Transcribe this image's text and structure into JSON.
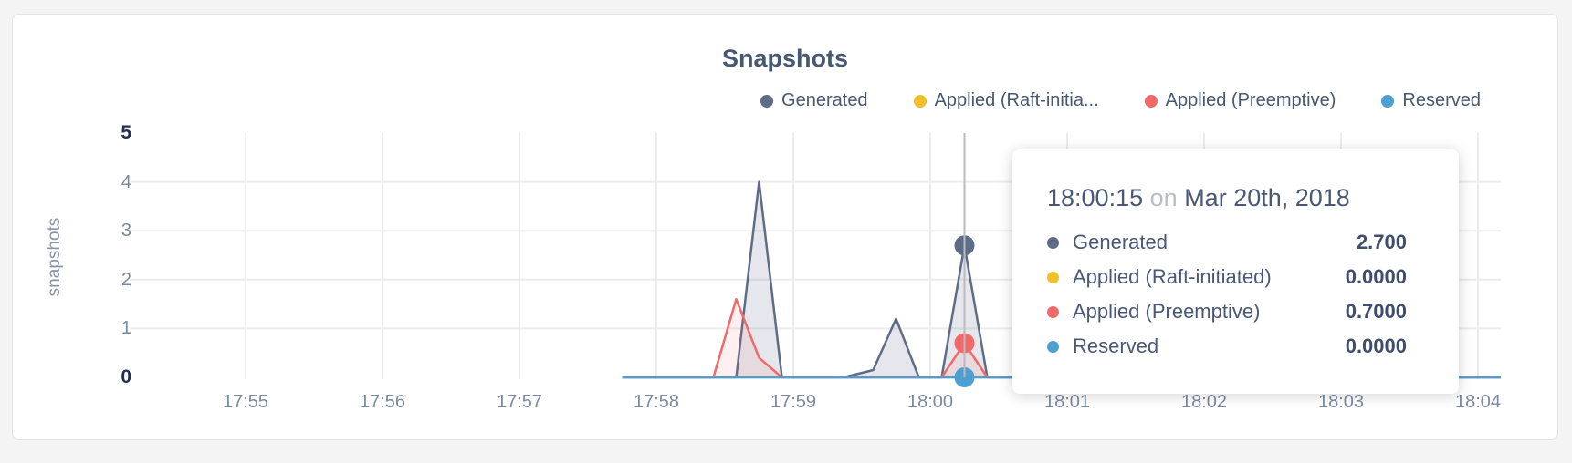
{
  "panel": {
    "title": "Snapshots"
  },
  "colors": {
    "generated": "#5F6C87",
    "applied_raft": "#F2BE2C",
    "applied_preemptive": "#F16969",
    "reserved": "#4E9FD1",
    "gridline": "#ececec",
    "crosshair": "#bbbbbb"
  },
  "legend": {
    "items": [
      {
        "label": "Generated",
        "color": "#5F6C87"
      },
      {
        "label": "Applied (Raft-initia...",
        "color": "#F2BE2C"
      },
      {
        "label": "Applied (Preemptive)",
        "color": "#F16969"
      },
      {
        "label": "Reserved",
        "color": "#4E9FD1"
      }
    ]
  },
  "chart_data": {
    "type": "area",
    "title": "Snapshots",
    "ylabel": "snapshots",
    "x_axis": {
      "tick_labels": [
        "17:55",
        "17:56",
        "17:57",
        "17:58",
        "17:59",
        "18:00",
        "18:01",
        "18:02",
        "18:03",
        "18:04"
      ],
      "tick_seconds": [
        0,
        60,
        120,
        180,
        240,
        300,
        360,
        420,
        480,
        540
      ],
      "data_domain_seconds": [
        165,
        550
      ]
    },
    "y_axis": {
      "ticks": [
        0,
        1,
        2,
        3,
        4,
        5
      ],
      "ylim": [
        0,
        5
      ],
      "gridline_values": [
        1,
        2,
        3,
        4
      ],
      "bold_ticks": [
        0,
        5
      ]
    },
    "series": [
      {
        "name": "Generated",
        "color": "#5F6C87",
        "fill": "rgba(95,108,135,0.16)",
        "points": [
          [
            165,
            0
          ],
          [
            215,
            0
          ],
          [
            225,
            4
          ],
          [
            235,
            0
          ],
          [
            262,
            0
          ],
          [
            275,
            0.15
          ],
          [
            285,
            1.2
          ],
          [
            295,
            0
          ],
          [
            305,
            0
          ],
          [
            315,
            2.7
          ],
          [
            325,
            0
          ],
          [
            550,
            0
          ]
        ]
      },
      {
        "name": "Applied (Raft-initiated)",
        "color": "#F2BE2C",
        "fill": "none",
        "points": [
          [
            165,
            0
          ],
          [
            550,
            0
          ]
        ]
      },
      {
        "name": "Applied (Preemptive)",
        "color": "#F16969",
        "fill": "rgba(241,105,105,0.10)",
        "points": [
          [
            165,
            0
          ],
          [
            205,
            0
          ],
          [
            215,
            1.6
          ],
          [
            225,
            0.4
          ],
          [
            235,
            0
          ],
          [
            305,
            0
          ],
          [
            315,
            0.7
          ],
          [
            325,
            0
          ],
          [
            550,
            0
          ]
        ]
      },
      {
        "name": "Reserved",
        "color": "#4E9FD1",
        "fill": "none",
        "points": [
          [
            165,
            0
          ],
          [
            550,
            0
          ]
        ]
      }
    ],
    "hover": {
      "time_seconds": 315,
      "values": [
        2.7,
        0,
        0.7,
        0
      ]
    }
  },
  "tooltip": {
    "time": "18:00:15",
    "connector": "on",
    "date": "Mar 20th, 2018",
    "rows": [
      {
        "label": "Generated",
        "color": "#5F6C87",
        "value": "2.700"
      },
      {
        "label": "Applied (Raft-initiated)",
        "color": "#F2BE2C",
        "value": "0.0000"
      },
      {
        "label": "Applied (Preemptive)",
        "color": "#F16969",
        "value": "0.7000"
      },
      {
        "label": "Reserved",
        "color": "#4E9FD1",
        "value": "0.0000"
      }
    ]
  }
}
